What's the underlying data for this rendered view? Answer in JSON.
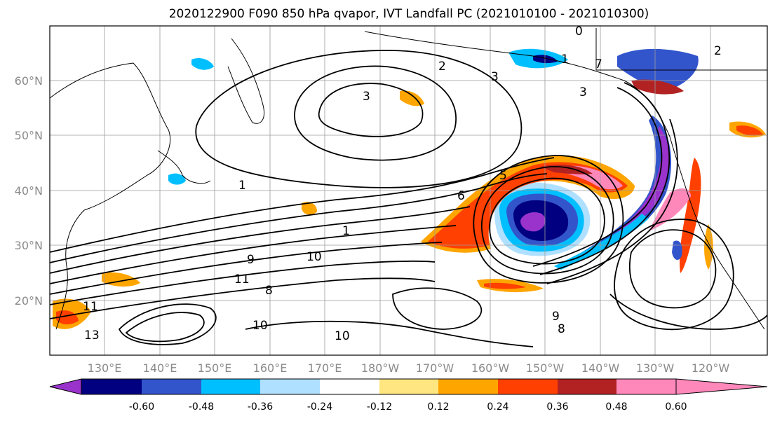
{
  "title": "2020122900 F090 850 hPa qvapor, IVT Landfall PC (2021010100 - 2021010300)",
  "lat_labels": [
    "60°N",
    "50°N",
    "40°N",
    "30°N",
    "20°N"
  ],
  "lon_labels": [
    "130°E",
    "140°E",
    "150°E",
    "160°E",
    "170°E",
    "180°W",
    "170°W",
    "160°W",
    "150°W",
    "140°W",
    "130°W",
    "120°W"
  ],
  "colorbar": {
    "colors": [
      "#9933cc",
      "#000080",
      "#3355cc",
      "#00bfff",
      "#b0e0ff",
      "#ffffff",
      "#ffe680",
      "#ffa500",
      "#ff4000",
      "#b22222",
      "#ff88bb"
    ],
    "tick_labels": [
      "-0.60",
      "-0.48",
      "-0.36",
      "-0.24",
      "-0.12",
      "0.12",
      "0.24",
      "0.36",
      "0.48",
      "0.60"
    ]
  },
  "contour_labels": [
    "1",
    "1",
    "1",
    "2",
    "2",
    "3",
    "3",
    "3",
    "6",
    "8",
    "8",
    "9",
    "9",
    "10",
    "10",
    "10",
    "11",
    "11",
    "13",
    "5",
    "7",
    "0"
  ]
}
